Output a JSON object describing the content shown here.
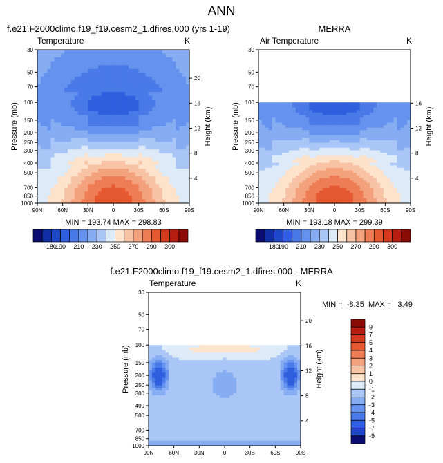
{
  "figure": {
    "title": "ANN"
  },
  "panels": [
    {
      "id": "model",
      "header": "f.e21.F2000climo.f19_f19.cesm2_1.dfires.000 (yrs 1-19)",
      "left_label": "Temperature",
      "right_label": "K",
      "stats": "MIN = 193.74  MAX = 298.83"
    },
    {
      "id": "obs",
      "header": "MERRA",
      "left_label": "Air Temperature",
      "right_label": "K",
      "stats": "MIN = 193.18  MAX = 299.39"
    },
    {
      "id": "diff",
      "header": "f.e21.F2000climo.f19_f19.cesm2_1.dfires.000 - MERRA",
      "left_label": "Temperature",
      "right_label": "K",
      "stats": "MIN =  -8.35  MAX =   3.49"
    }
  ],
  "chart_data": [
    {
      "type": "heatmap",
      "title": "f.e21.F2000climo.f19_f19.cesm2_1.dfires.000 (yrs 1-19)",
      "subtitle": "Temperature",
      "units": "K",
      "xlabel": "",
      "ylabel": "Pressure (mb)",
      "y2label": "Height (km)",
      "x_ticks": [
        "90N",
        "60N",
        "30N",
        "0",
        "30S",
        "60S",
        "90S"
      ],
      "x_range": [
        90,
        -90
      ],
      "y_ticks": [
        30,
        50,
        70,
        100,
        150,
        200,
        250,
        300,
        400,
        500,
        700,
        850,
        1000
      ],
      "y_range": [
        30,
        1000
      ],
      "y2_ticks": [
        20,
        16,
        12,
        8,
        4
      ],
      "data_top": 30,
      "min": 193.74,
      "max": 298.83,
      "colorbar": "cb_abs"
    },
    {
      "type": "heatmap",
      "title": "MERRA",
      "subtitle": "Air Temperature",
      "units": "K",
      "xlabel": "",
      "ylabel": "Pressure (mb)",
      "y2label": "Height (km)",
      "x_ticks": [
        "90N",
        "60N",
        "30N",
        "0",
        "30S",
        "60S",
        "90S"
      ],
      "x_range": [
        90,
        -90
      ],
      "y_ticks": [
        30,
        50,
        70,
        100,
        150,
        200,
        250,
        300,
        400,
        500,
        700,
        850,
        1000
      ],
      "y_range": [
        30,
        1000
      ],
      "y2_ticks": [
        16,
        12,
        8,
        4
      ],
      "data_top": 100,
      "min": 193.18,
      "max": 299.39,
      "colorbar": "cb_abs"
    },
    {
      "type": "heatmap",
      "title": "f.e21.F2000climo.f19_f19.cesm2_1.dfires.000 - MERRA",
      "subtitle": "Temperature",
      "units": "K",
      "xlabel": "",
      "ylabel": "Pressure (mb)",
      "y2label": "Height (km)",
      "x_ticks": [
        "90N",
        "60N",
        "30N",
        "0",
        "30S",
        "60S",
        "90S"
      ],
      "x_range": [
        90,
        -90
      ],
      "y_ticks": [
        30,
        50,
        70,
        100,
        150,
        200,
        250,
        300,
        400,
        500,
        700,
        850,
        1000
      ],
      "y_range": [
        30,
        1000
      ],
      "y2_ticks": [
        20,
        16,
        12,
        8,
        4
      ],
      "data_top": 100,
      "min": -8.35,
      "max": 3.49,
      "colorbar": "cb_diff"
    }
  ],
  "colorbars": {
    "cb_abs": {
      "orientation": "horizontal",
      "levels": [
        180,
        190,
        200,
        210,
        220,
        230,
        240,
        250,
        260,
        270,
        280,
        290,
        300
      ],
      "labels": [
        "180",
        "190",
        "210",
        "230",
        "250",
        "270",
        "290",
        "300"
      ],
      "colors": [
        "#0b0c72",
        "#102ea6",
        "#1e48c9",
        "#2f5fdf",
        "#4a79e8",
        "#6592ee",
        "#86acf2",
        "#aac6f6",
        "#ddeaf8",
        "#fde2cc",
        "#f8c3a4",
        "#f4a27d",
        "#ee7d55",
        "#e6582f",
        "#d63a1e",
        "#b51e10",
        "#8a0b06"
      ]
    },
    "cb_diff": {
      "orientation": "vertical",
      "labels": [
        "9",
        "7",
        "5",
        "4",
        "3",
        "2",
        "1",
        "0",
        "-1",
        "-2",
        "-3",
        "-4",
        "-5",
        "-7",
        "-9"
      ],
      "colors": [
        "#8a0b06",
        "#b51e10",
        "#d63a1e",
        "#e6582f",
        "#ee7d55",
        "#f4a27d",
        "#f8c3a4",
        "#fde2cc",
        "#ddeaf8",
        "#aac6f6",
        "#86acf2",
        "#6592ee",
        "#4a79e8",
        "#2f5fdf",
        "#1e48c9",
        "#0b0c72"
      ]
    }
  }
}
